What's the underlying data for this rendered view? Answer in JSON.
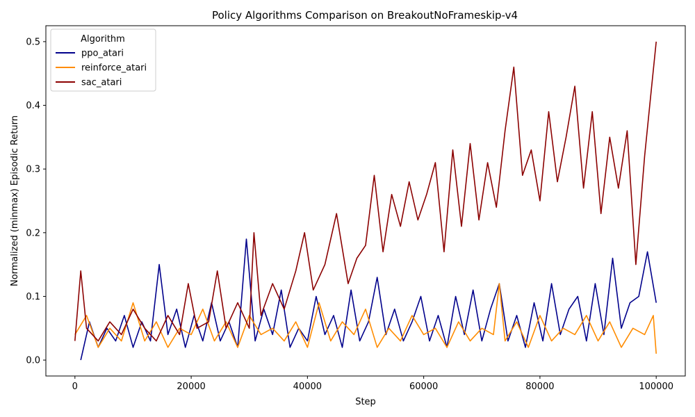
{
  "chart_data": {
    "type": "line",
    "title": "Policy Algorithms Comparison on BreakoutNoFrameskip-v4",
    "xlabel": "Step",
    "ylabel": "Normalized (minmax) Episodic Return",
    "xlim": [
      -5000,
      105000
    ],
    "ylim": [
      -0.025,
      0.525
    ],
    "xticks": [
      0,
      20000,
      40000,
      60000,
      80000,
      100000
    ],
    "yticks": [
      0.0,
      0.1,
      0.2,
      0.3,
      0.4,
      0.5
    ],
    "xtick_labels": [
      "0",
      "20000",
      "40000",
      "60000",
      "80000",
      "100000"
    ],
    "ytick_labels": [
      "0.0",
      "0.1",
      "0.2",
      "0.3",
      "0.4",
      "0.5"
    ],
    "grid": false,
    "legend": {
      "title": "Algorithm",
      "position": "top-left"
    },
    "series": [
      {
        "name": "ppo_atari",
        "color": "#00008b",
        "x": [
          1000,
          2500,
          4000,
          5500,
          7000,
          8500,
          10000,
          11500,
          13000,
          14500,
          16000,
          17500,
          19000,
          20500,
          22000,
          23500,
          25000,
          26500,
          28000,
          29500,
          31000,
          32500,
          34000,
          35500,
          37000,
          38500,
          40000,
          41500,
          43000,
          44500,
          46000,
          47500,
          49000,
          50500,
          52000,
          53500,
          55000,
          56500,
          58000,
          59500,
          61000,
          62500,
          64000,
          65500,
          67000,
          68500,
          70000,
          71500,
          73000,
          74500,
          76000,
          77500,
          79000,
          80500,
          82000,
          83500,
          85000,
          86500,
          88000,
          89500,
          91000,
          92500,
          94000,
          95500,
          97000,
          98500,
          100000
        ],
        "y": [
          0.0,
          0.06,
          0.02,
          0.05,
          0.03,
          0.07,
          0.02,
          0.06,
          0.03,
          0.15,
          0.04,
          0.08,
          0.02,
          0.07,
          0.03,
          0.09,
          0.03,
          0.06,
          0.02,
          0.19,
          0.03,
          0.08,
          0.04,
          0.11,
          0.02,
          0.05,
          0.03,
          0.1,
          0.04,
          0.07,
          0.02,
          0.11,
          0.03,
          0.06,
          0.13,
          0.04,
          0.08,
          0.03,
          0.06,
          0.1,
          0.03,
          0.07,
          0.02,
          0.1,
          0.04,
          0.11,
          0.03,
          0.08,
          0.12,
          0.03,
          0.07,
          0.02,
          0.09,
          0.03,
          0.12,
          0.04,
          0.08,
          0.1,
          0.03,
          0.12,
          0.04,
          0.16,
          0.05,
          0.09,
          0.1,
          0.17,
          0.09
        ]
      },
      {
        "name": "reinforce_atari",
        "color": "#ff8c00",
        "x": [
          0,
          2000,
          4000,
          6000,
          8000,
          10000,
          12000,
          14000,
          16000,
          18000,
          20000,
          22000,
          24000,
          26000,
          28000,
          30000,
          32000,
          34000,
          36000,
          38000,
          40000,
          42000,
          44000,
          46000,
          48000,
          50000,
          52000,
          54000,
          56000,
          58000,
          60000,
          62000,
          64000,
          66000,
          68000,
          70000,
          72000,
          73000,
          74000,
          76000,
          78000,
          80000,
          82000,
          84000,
          86000,
          88000,
          90000,
          92000,
          94000,
          96000,
          98000,
          99500,
          100000
        ],
        "y": [
          0.04,
          0.07,
          0.02,
          0.05,
          0.03,
          0.09,
          0.03,
          0.06,
          0.02,
          0.05,
          0.04,
          0.08,
          0.03,
          0.06,
          0.02,
          0.07,
          0.04,
          0.05,
          0.03,
          0.06,
          0.02,
          0.09,
          0.03,
          0.06,
          0.04,
          0.08,
          0.02,
          0.05,
          0.03,
          0.07,
          0.04,
          0.05,
          0.02,
          0.06,
          0.03,
          0.05,
          0.04,
          0.12,
          0.03,
          0.06,
          0.02,
          0.07,
          0.03,
          0.05,
          0.04,
          0.07,
          0.03,
          0.06,
          0.02,
          0.05,
          0.04,
          0.07,
          0.01
        ]
      },
      {
        "name": "sac_atari",
        "color": "#8b0000",
        "x": [
          0,
          1000,
          2000,
          4000,
          6000,
          8000,
          10000,
          12000,
          14000,
          16000,
          18000,
          19500,
          21000,
          23000,
          24500,
          26000,
          28000,
          30000,
          30800,
          32000,
          34000,
          36000,
          38000,
          39500,
          41000,
          43000,
          45000,
          47000,
          48500,
          50000,
          51500,
          53000,
          54500,
          56000,
          57500,
          59000,
          60500,
          62000,
          63500,
          65000,
          66500,
          68000,
          69500,
          71000,
          72500,
          74000,
          75500,
          77000,
          78500,
          80000,
          81500,
          83000,
          84500,
          86000,
          87500,
          89000,
          90500,
          92000,
          93500,
          95000,
          96500,
          98000,
          99000,
          100000
        ],
        "y": [
          0.03,
          0.14,
          0.05,
          0.03,
          0.06,
          0.04,
          0.08,
          0.05,
          0.03,
          0.07,
          0.04,
          0.12,
          0.05,
          0.06,
          0.14,
          0.05,
          0.09,
          0.05,
          0.2,
          0.07,
          0.12,
          0.08,
          0.14,
          0.2,
          0.11,
          0.15,
          0.23,
          0.12,
          0.16,
          0.18,
          0.29,
          0.17,
          0.26,
          0.21,
          0.28,
          0.22,
          0.26,
          0.31,
          0.17,
          0.33,
          0.21,
          0.34,
          0.22,
          0.31,
          0.24,
          0.36,
          0.46,
          0.29,
          0.33,
          0.25,
          0.39,
          0.28,
          0.35,
          0.43,
          0.27,
          0.39,
          0.23,
          0.35,
          0.27,
          0.36,
          0.15,
          0.32,
          0.41,
          0.5
        ]
      }
    ]
  }
}
